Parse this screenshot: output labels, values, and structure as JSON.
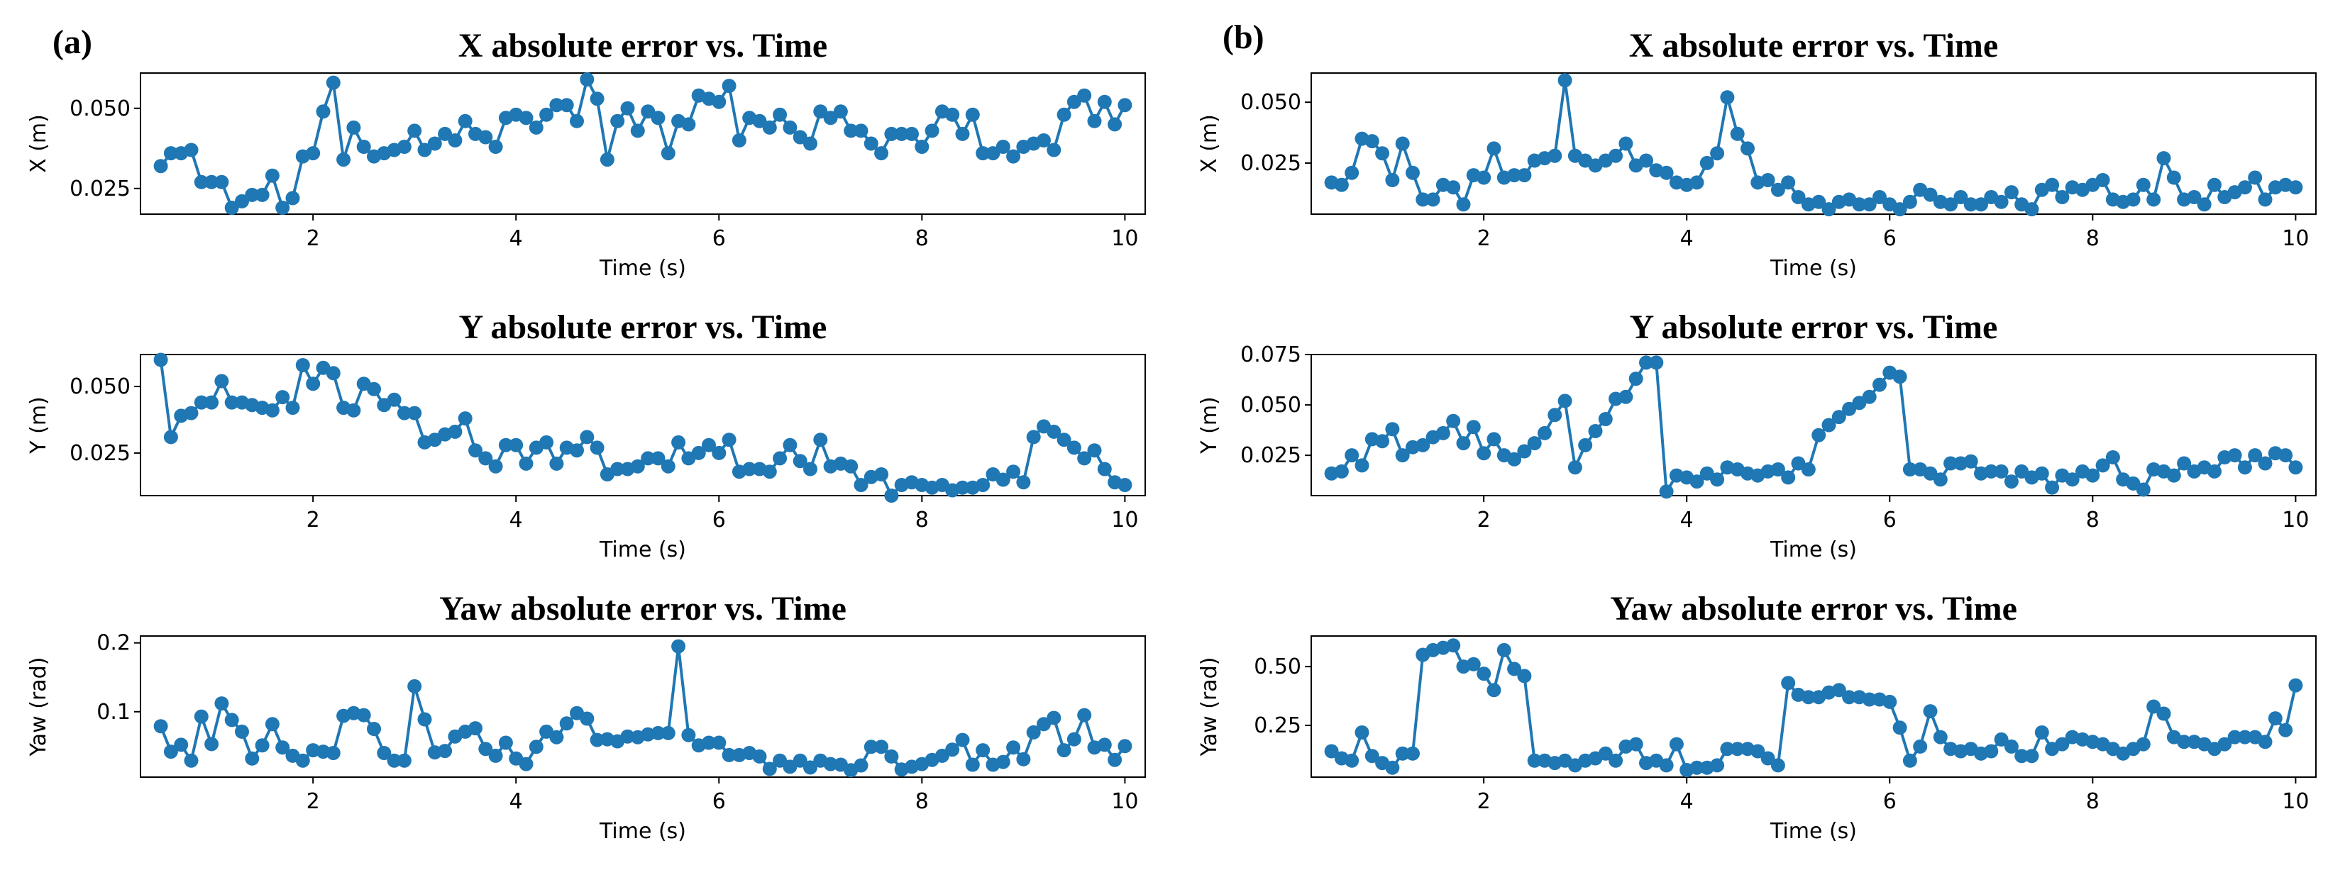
{
  "panels": [
    {
      "label": "(a)"
    },
    {
      "label": "(b)"
    }
  ],
  "style": {
    "line_color": "#1f77b4"
  },
  "chart_data": [
    {
      "type": "line",
      "panel": "(a)",
      "title": "X absolute error vs. Time",
      "xlabel": "Time (s)",
      "ylabel": "X (m)",
      "xlim": [
        0.3,
        10.2
      ],
      "ylim": [
        0.017,
        0.061
      ],
      "xticks": [
        2,
        4,
        6,
        8,
        10
      ],
      "yticks": [
        0.025,
        0.05
      ],
      "yticklabels": [
        "0.025",
        "0.050"
      ],
      "x": [
        0.5,
        0.6,
        0.7,
        0.8,
        0.9,
        1.0,
        1.1,
        1.2,
        1.3,
        1.4,
        1.5,
        1.6,
        1.7,
        1.8,
        1.9,
        2.0,
        2.1,
        2.2,
        2.3,
        2.4,
        2.5,
        2.6,
        2.7,
        2.8,
        2.9,
        3.0,
        3.1,
        3.2,
        3.3,
        3.4,
        3.5,
        3.6,
        3.7,
        3.8,
        3.9,
        4.0,
        4.1,
        4.2,
        4.3,
        4.4,
        4.5,
        4.6,
        4.7,
        4.8,
        4.9,
        5.0,
        5.1,
        5.2,
        5.3,
        5.4,
        5.5,
        5.6,
        5.7,
        5.8,
        5.9,
        6.0,
        6.1,
        6.2,
        6.3,
        6.4,
        6.5,
        6.6,
        6.7,
        6.8,
        6.9,
        7.0,
        7.1,
        7.2,
        7.3,
        7.4,
        7.5,
        7.6,
        7.7,
        7.8,
        7.9,
        8.0,
        8.1,
        8.2,
        8.3,
        8.4,
        8.5,
        8.6,
        8.7,
        8.8,
        8.9,
        9.0,
        9.1,
        9.2,
        9.3,
        9.4,
        9.5,
        9.6,
        9.7,
        9.8,
        9.9,
        10.0
      ],
      "y": [
        0.032,
        0.036,
        0.036,
        0.037,
        0.027,
        0.027,
        0.027,
        0.019,
        0.021,
        0.023,
        0.023,
        0.029,
        0.019,
        0.022,
        0.035,
        0.036,
        0.049,
        0.058,
        0.034,
        0.044,
        0.038,
        0.035,
        0.036,
        0.037,
        0.038,
        0.043,
        0.037,
        0.039,
        0.042,
        0.04,
        0.046,
        0.042,
        0.041,
        0.038,
        0.047,
        0.048,
        0.047,
        0.044,
        0.048,
        0.051,
        0.051,
        0.046,
        0.059,
        0.053,
        0.034,
        0.046,
        0.05,
        0.043,
        0.049,
        0.047,
        0.036,
        0.046,
        0.045,
        0.054,
        0.053,
        0.052,
        0.057,
        0.04,
        0.047,
        0.046,
        0.044,
        0.048,
        0.044,
        0.041,
        0.039,
        0.049,
        0.047,
        0.049,
        0.043,
        0.043,
        0.039,
        0.036,
        0.042,
        0.042,
        0.042,
        0.038,
        0.043,
        0.049,
        0.048,
        0.042,
        0.048,
        0.036,
        0.036,
        0.038,
        0.035,
        0.038,
        0.039,
        0.04,
        0.037,
        0.048,
        0.052,
        0.054,
        0.046,
        0.052,
        0.045,
        0.051
      ]
    },
    {
      "type": "line",
      "panel": "(a)",
      "title": "Y absolute error vs. Time",
      "xlabel": "Time (s)",
      "ylabel": "Y (m)",
      "xlim": [
        0.3,
        10.2
      ],
      "ylim": [
        0.009,
        0.062
      ],
      "xticks": [
        2,
        4,
        6,
        8,
        10
      ],
      "yticks": [
        0.025,
        0.05
      ],
      "yticklabels": [
        "0.025",
        "0.050"
      ],
      "x": [
        0.5,
        0.6,
        0.7,
        0.8,
        0.9,
        1.0,
        1.1,
        1.2,
        1.3,
        1.4,
        1.5,
        1.6,
        1.7,
        1.8,
        1.9,
        2.0,
        2.1,
        2.2,
        2.3,
        2.4,
        2.5,
        2.6,
        2.7,
        2.8,
        2.9,
        3.0,
        3.1,
        3.2,
        3.3,
        3.4,
        3.5,
        3.6,
        3.7,
        3.8,
        3.9,
        4.0,
        4.1,
        4.2,
        4.3,
        4.4,
        4.5,
        4.6,
        4.7,
        4.8,
        4.9,
        5.0,
        5.1,
        5.2,
        5.3,
        5.4,
        5.5,
        5.6,
        5.7,
        5.8,
        5.9,
        6.0,
        6.1,
        6.2,
        6.3,
        6.4,
        6.5,
        6.6,
        6.7,
        6.8,
        6.9,
        7.0,
        7.1,
        7.2,
        7.3,
        7.4,
        7.5,
        7.6,
        7.7,
        7.8,
        7.9,
        8.0,
        8.1,
        8.2,
        8.3,
        8.4,
        8.5,
        8.6,
        8.7,
        8.8,
        8.9,
        9.0,
        9.1,
        9.2,
        9.3,
        9.4,
        9.5,
        9.6,
        9.7,
        9.8,
        9.9,
        10.0
      ],
      "y": [
        0.06,
        0.031,
        0.039,
        0.04,
        0.044,
        0.044,
        0.052,
        0.044,
        0.044,
        0.043,
        0.042,
        0.041,
        0.046,
        0.042,
        0.058,
        0.051,
        0.057,
        0.055,
        0.042,
        0.041,
        0.051,
        0.049,
        0.043,
        0.045,
        0.04,
        0.04,
        0.029,
        0.03,
        0.032,
        0.033,
        0.038,
        0.026,
        0.023,
        0.02,
        0.028,
        0.028,
        0.021,
        0.027,
        0.029,
        0.021,
        0.027,
        0.026,
        0.031,
        0.027,
        0.017,
        0.019,
        0.019,
        0.02,
        0.023,
        0.023,
        0.02,
        0.029,
        0.023,
        0.025,
        0.028,
        0.025,
        0.03,
        0.018,
        0.019,
        0.019,
        0.018,
        0.023,
        0.028,
        0.022,
        0.019,
        0.03,
        0.02,
        0.021,
        0.02,
        0.013,
        0.016,
        0.017,
        0.009,
        0.013,
        0.014,
        0.013,
        0.012,
        0.013,
        0.011,
        0.012,
        0.012,
        0.013,
        0.017,
        0.015,
        0.018,
        0.014,
        0.031,
        0.035,
        0.033,
        0.03,
        0.027,
        0.023,
        0.026,
        0.019,
        0.014,
        0.013
      ]
    },
    {
      "type": "line",
      "panel": "(a)",
      "title": "Yaw absolute error vs. Time",
      "xlabel": "Time (s)",
      "ylabel": "Yaw (rad)",
      "xlim": [
        0.3,
        10.2
      ],
      "ylim": [
        0.005,
        0.21
      ],
      "xticks": [
        2,
        4,
        6,
        8,
        10
      ],
      "yticks": [
        0.1,
        0.2
      ],
      "yticklabels": [
        "0.1",
        "0.2"
      ],
      "x": [
        0.5,
        0.6,
        0.7,
        0.8,
        0.9,
        1.0,
        1.1,
        1.2,
        1.3,
        1.4,
        1.5,
        1.6,
        1.7,
        1.8,
        1.9,
        2.0,
        2.1,
        2.2,
        2.3,
        2.4,
        2.5,
        2.6,
        2.7,
        2.8,
        2.9,
        3.0,
        3.1,
        3.2,
        3.3,
        3.4,
        3.5,
        3.6,
        3.7,
        3.8,
        3.9,
        4.0,
        4.1,
        4.2,
        4.3,
        4.4,
        4.5,
        4.6,
        4.7,
        4.8,
        4.9,
        5.0,
        5.1,
        5.2,
        5.3,
        5.4,
        5.5,
        5.6,
        5.7,
        5.8,
        5.9,
        6.0,
        6.1,
        6.2,
        6.3,
        6.4,
        6.5,
        6.6,
        6.7,
        6.8,
        6.9,
        7.0,
        7.1,
        7.2,
        7.3,
        7.4,
        7.5,
        7.6,
        7.7,
        7.8,
        7.9,
        8.0,
        8.1,
        8.2,
        8.3,
        8.4,
        8.5,
        8.6,
        8.7,
        8.8,
        8.9,
        9.0,
        9.1,
        9.2,
        9.3,
        9.4,
        9.5,
        9.6,
        9.7,
        9.8,
        9.9,
        10.0
      ],
      "y": [
        0.079,
        0.042,
        0.052,
        0.029,
        0.093,
        0.053,
        0.112,
        0.088,
        0.071,
        0.032,
        0.051,
        0.082,
        0.048,
        0.036,
        0.029,
        0.044,
        0.042,
        0.04,
        0.094,
        0.098,
        0.095,
        0.075,
        0.04,
        0.029,
        0.029,
        0.137,
        0.089,
        0.041,
        0.043,
        0.064,
        0.071,
        0.076,
        0.046,
        0.036,
        0.055,
        0.032,
        0.024,
        0.049,
        0.071,
        0.063,
        0.083,
        0.098,
        0.09,
        0.059,
        0.06,
        0.057,
        0.064,
        0.063,
        0.067,
        0.069,
        0.069,
        0.195,
        0.066,
        0.051,
        0.055,
        0.055,
        0.037,
        0.037,
        0.04,
        0.035,
        0.017,
        0.029,
        0.02,
        0.029,
        0.019,
        0.029,
        0.024,
        0.023,
        0.015,
        0.022,
        0.049,
        0.049,
        0.035,
        0.016,
        0.02,
        0.024,
        0.03,
        0.036,
        0.045,
        0.059,
        0.023,
        0.044,
        0.023,
        0.027,
        0.048,
        0.031,
        0.07,
        0.082,
        0.091,
        0.044,
        0.06,
        0.095,
        0.048,
        0.052,
        0.03,
        0.05
      ]
    },
    {
      "type": "line",
      "panel": "(b)",
      "title": "X absolute error vs. Time",
      "xlabel": "Time (s)",
      "ylabel": "X (m)",
      "xlim": [
        0.3,
        10.2
      ],
      "ylim": [
        0.004,
        0.062
      ],
      "xticks": [
        2,
        4,
        6,
        8,
        10
      ],
      "yticks": [
        0.025,
        0.05
      ],
      "yticklabels": [
        "0.025",
        "0.050"
      ],
      "x": [
        0.5,
        0.6,
        0.7,
        0.8,
        0.9,
        1.0,
        1.1,
        1.2,
        1.3,
        1.4,
        1.5,
        1.6,
        1.7,
        1.8,
        1.9,
        2.0,
        2.1,
        2.2,
        2.3,
        2.4,
        2.5,
        2.6,
        2.7,
        2.8,
        2.9,
        3.0,
        3.1,
        3.2,
        3.3,
        3.4,
        3.5,
        3.6,
        3.7,
        3.8,
        3.9,
        4.0,
        4.1,
        4.2,
        4.3,
        4.4,
        4.5,
        4.6,
        4.7,
        4.8,
        4.9,
        5.0,
        5.1,
        5.2,
        5.3,
        5.4,
        5.5,
        5.6,
        5.7,
        5.8,
        5.9,
        6.0,
        6.1,
        6.2,
        6.3,
        6.4,
        6.5,
        6.6,
        6.7,
        6.8,
        6.9,
        7.0,
        7.1,
        7.2,
        7.3,
        7.4,
        7.5,
        7.6,
        7.7,
        7.8,
        7.9,
        8.0,
        8.1,
        8.2,
        8.3,
        8.4,
        8.5,
        8.6,
        8.7,
        8.8,
        8.9,
        9.0,
        9.1,
        9.2,
        9.3,
        9.4,
        9.5,
        9.6,
        9.7,
        9.8,
        9.9,
        10.0
      ],
      "y": [
        0.017,
        0.016,
        0.021,
        0.035,
        0.034,
        0.029,
        0.018,
        0.033,
        0.021,
        0.01,
        0.01,
        0.016,
        0.015,
        0.008,
        0.02,
        0.019,
        0.031,
        0.019,
        0.02,
        0.02,
        0.026,
        0.027,
        0.028,
        0.059,
        0.028,
        0.026,
        0.024,
        0.026,
        0.028,
        0.033,
        0.024,
        0.026,
        0.022,
        0.021,
        0.017,
        0.016,
        0.017,
        0.025,
        0.029,
        0.052,
        0.037,
        0.031,
        0.017,
        0.018,
        0.014,
        0.017,
        0.011,
        0.008,
        0.009,
        0.006,
        0.009,
        0.01,
        0.008,
        0.008,
        0.011,
        0.008,
        0.006,
        0.009,
        0.014,
        0.012,
        0.009,
        0.008,
        0.011,
        0.008,
        0.008,
        0.011,
        0.009,
        0.013,
        0.008,
        0.006,
        0.014,
        0.016,
        0.011,
        0.015,
        0.014,
        0.016,
        0.018,
        0.01,
        0.009,
        0.01,
        0.016,
        0.01,
        0.027,
        0.019,
        0.01,
        0.011,
        0.008,
        0.016,
        0.011,
        0.013,
        0.015,
        0.019,
        0.01,
        0.015,
        0.016,
        0.015
      ]
    },
    {
      "type": "line",
      "panel": "(b)",
      "title": "Y absolute error vs. Time",
      "xlabel": "Time (s)",
      "ylabel": "Y (m)",
      "xlim": [
        0.3,
        10.2
      ],
      "ylim": [
        0.005,
        0.075
      ],
      "xticks": [
        2,
        4,
        6,
        8,
        10
      ],
      "yticks": [
        0.025,
        0.05,
        0.075
      ],
      "yticklabels": [
        "0.025",
        "0.050",
        "0.075"
      ],
      "x": [
        0.5,
        0.6,
        0.7,
        0.8,
        0.9,
        1.0,
        1.1,
        1.2,
        1.3,
        1.4,
        1.5,
        1.6,
        1.7,
        1.8,
        1.9,
        2.0,
        2.1,
        2.2,
        2.3,
        2.4,
        2.5,
        2.6,
        2.7,
        2.8,
        2.9,
        3.0,
        3.1,
        3.2,
        3.3,
        3.4,
        3.5,
        3.6,
        3.7,
        3.8,
        3.9,
        4.0,
        4.1,
        4.2,
        4.3,
        4.4,
        4.5,
        4.6,
        4.7,
        4.8,
        4.9,
        5.0,
        5.1,
        5.2,
        5.3,
        5.4,
        5.5,
        5.6,
        5.7,
        5.8,
        5.9,
        6.0,
        6.1,
        6.2,
        6.3,
        6.4,
        6.5,
        6.6,
        6.7,
        6.8,
        6.9,
        7.0,
        7.1,
        7.2,
        7.3,
        7.4,
        7.5,
        7.6,
        7.7,
        7.8,
        7.9,
        8.0,
        8.1,
        8.2,
        8.3,
        8.4,
        8.5,
        8.6,
        8.7,
        8.8,
        8.9,
        9.0,
        9.1,
        9.2,
        9.3,
        9.4,
        9.5,
        9.6,
        9.7,
        9.8,
        9.9,
        10.0
      ],
      "y": [
        0.016,
        0.017,
        0.025,
        0.02,
        0.033,
        0.032,
        0.038,
        0.025,
        0.029,
        0.03,
        0.034,
        0.036,
        0.042,
        0.031,
        0.039,
        0.026,
        0.033,
        0.025,
        0.023,
        0.027,
        0.031,
        0.036,
        0.045,
        0.052,
        0.019,
        0.03,
        0.037,
        0.043,
        0.053,
        0.054,
        0.063,
        0.071,
        0.071,
        0.007,
        0.015,
        0.014,
        0.012,
        0.016,
        0.013,
        0.019,
        0.018,
        0.016,
        0.015,
        0.017,
        0.018,
        0.014,
        0.021,
        0.018,
        0.035,
        0.04,
        0.044,
        0.048,
        0.051,
        0.054,
        0.06,
        0.066,
        0.064,
        0.018,
        0.018,
        0.016,
        0.013,
        0.021,
        0.021,
        0.022,
        0.016,
        0.017,
        0.017,
        0.012,
        0.017,
        0.014,
        0.016,
        0.009,
        0.015,
        0.013,
        0.017,
        0.015,
        0.02,
        0.024,
        0.013,
        0.011,
        0.008,
        0.018,
        0.017,
        0.015,
        0.021,
        0.017,
        0.019,
        0.017,
        0.024,
        0.025,
        0.019,
        0.025,
        0.021,
        0.026,
        0.025,
        0.019
      ]
    },
    {
      "type": "line",
      "panel": "(b)",
      "title": "Yaw absolute error vs. Time",
      "xlabel": "Time (s)",
      "ylabel": "Yaw (rad)",
      "xlim": [
        0.3,
        10.2
      ],
      "ylim": [
        0.03,
        0.63
      ],
      "xticks": [
        2,
        4,
        6,
        8,
        10
      ],
      "yticks": [
        0.25,
        0.5
      ],
      "yticklabels": [
        "0.25",
        "0.50"
      ],
      "x": [
        0.5,
        0.6,
        0.7,
        0.8,
        0.9,
        1.0,
        1.1,
        1.2,
        1.3,
        1.4,
        1.5,
        1.6,
        1.7,
        1.8,
        1.9,
        2.0,
        2.1,
        2.2,
        2.3,
        2.4,
        2.5,
        2.6,
        2.7,
        2.8,
        2.9,
        3.0,
        3.1,
        3.2,
        3.3,
        3.4,
        3.5,
        3.6,
        3.7,
        3.8,
        3.9,
        4.0,
        4.1,
        4.2,
        4.3,
        4.4,
        4.5,
        4.6,
        4.7,
        4.8,
        4.9,
        5.0,
        5.1,
        5.2,
        5.3,
        5.4,
        5.5,
        5.6,
        5.7,
        5.8,
        5.9,
        6.0,
        6.1,
        6.2,
        6.3,
        6.4,
        6.5,
        6.6,
        6.7,
        6.8,
        6.9,
        7.0,
        7.1,
        7.2,
        7.3,
        7.4,
        7.5,
        7.6,
        7.7,
        7.8,
        7.9,
        8.0,
        8.1,
        8.2,
        8.3,
        8.4,
        8.5,
        8.6,
        8.7,
        8.8,
        8.9,
        9.0,
        9.1,
        9.2,
        9.3,
        9.4,
        9.5,
        9.6,
        9.7,
        9.8,
        9.9,
        10.0
      ],
      "y": [
        0.14,
        0.11,
        0.1,
        0.22,
        0.12,
        0.09,
        0.07,
        0.13,
        0.13,
        0.55,
        0.57,
        0.58,
        0.59,
        0.5,
        0.51,
        0.47,
        0.4,
        0.57,
        0.49,
        0.46,
        0.1,
        0.1,
        0.09,
        0.1,
        0.08,
        0.1,
        0.11,
        0.13,
        0.1,
        0.16,
        0.17,
        0.09,
        0.1,
        0.08,
        0.17,
        0.06,
        0.07,
        0.07,
        0.08,
        0.15,
        0.15,
        0.15,
        0.14,
        0.11,
        0.08,
        0.43,
        0.38,
        0.37,
        0.37,
        0.39,
        0.4,
        0.37,
        0.37,
        0.36,
        0.36,
        0.35,
        0.24,
        0.1,
        0.16,
        0.31,
        0.2,
        0.15,
        0.14,
        0.15,
        0.13,
        0.14,
        0.19,
        0.16,
        0.12,
        0.12,
        0.22,
        0.15,
        0.17,
        0.2,
        0.19,
        0.18,
        0.17,
        0.15,
        0.13,
        0.15,
        0.17,
        0.33,
        0.3,
        0.2,
        0.18,
        0.18,
        0.17,
        0.15,
        0.17,
        0.2,
        0.2,
        0.2,
        0.18,
        0.28,
        0.23,
        0.42
      ]
    }
  ]
}
